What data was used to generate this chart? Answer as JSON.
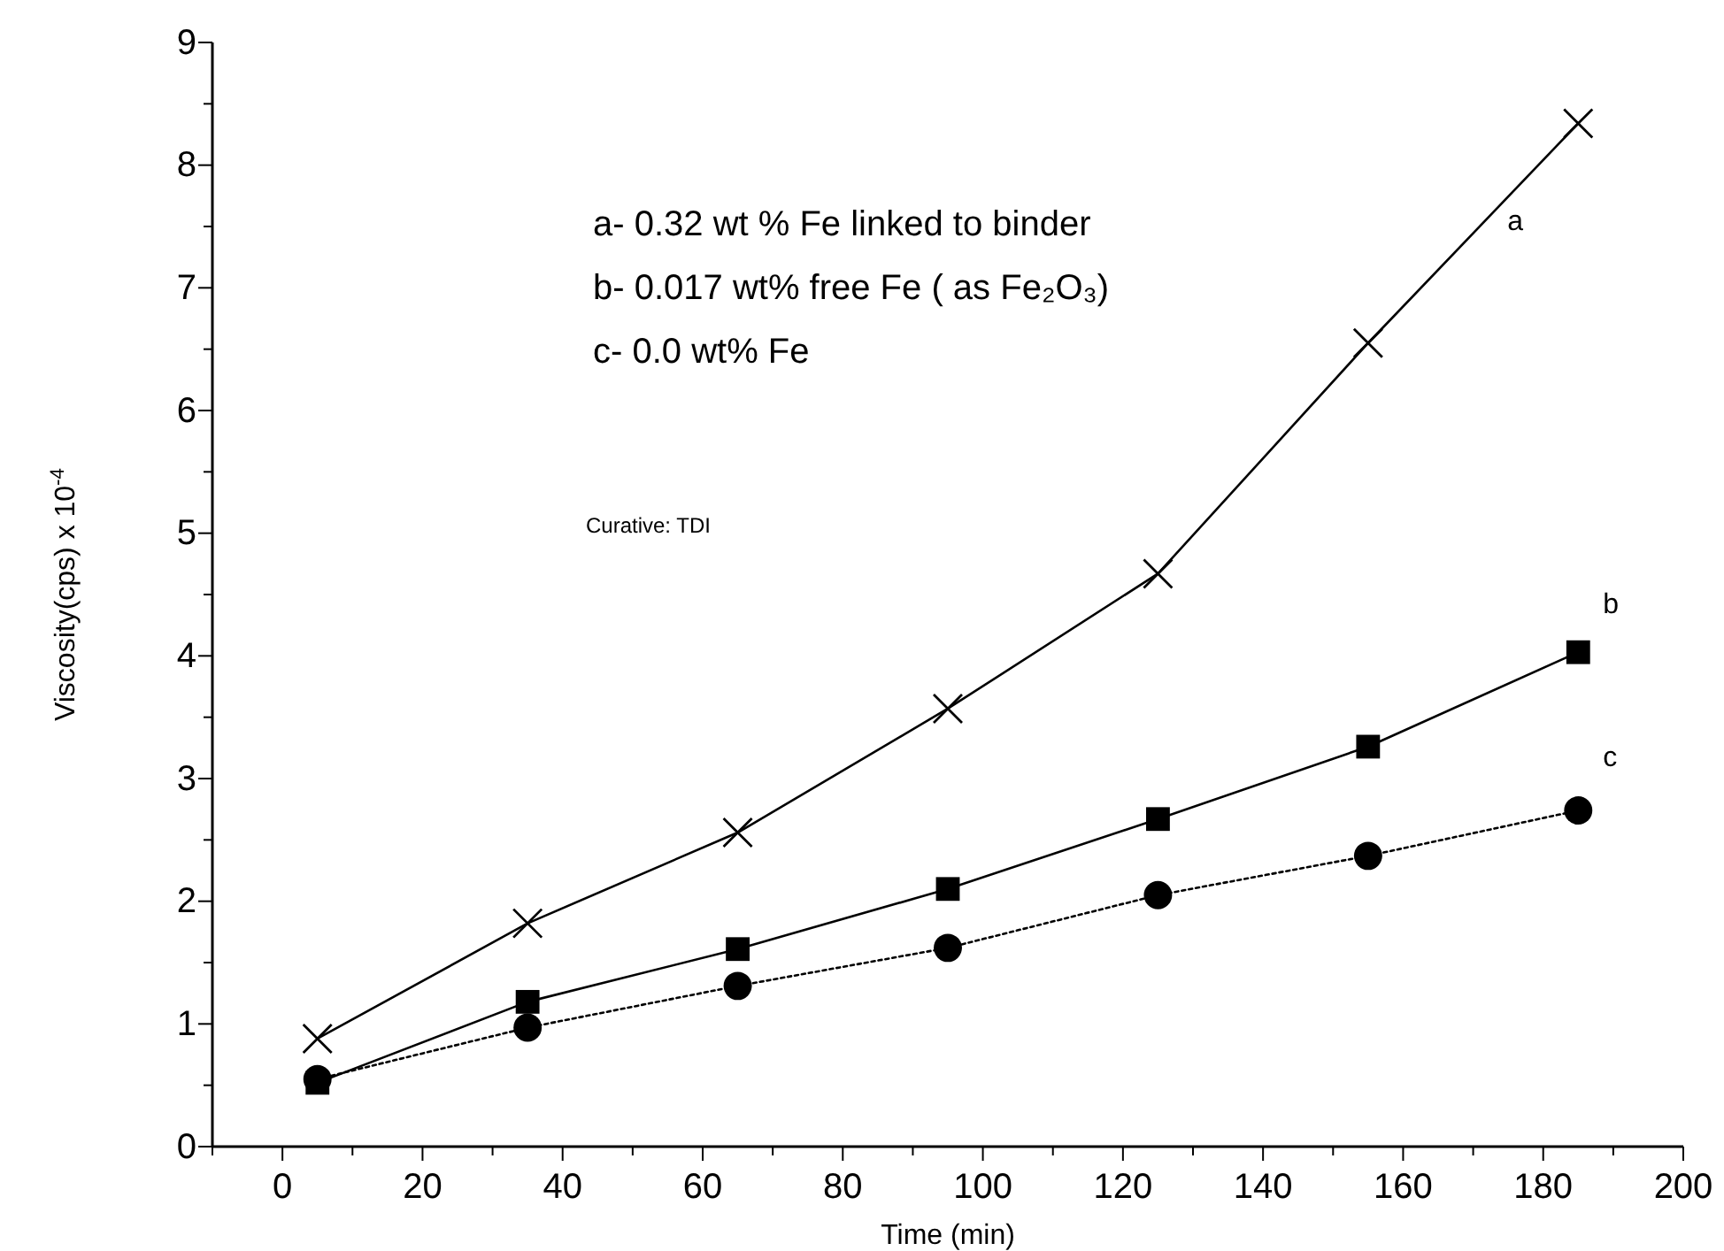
{
  "chart_data": {
    "type": "line",
    "xlabel": "Time (min)",
    "ylabel": "Viscosity(cps) x 10$^{-4}$",
    "x": [
      5,
      35,
      65,
      95,
      125,
      155,
      185
    ],
    "series": [
      {
        "name": "a",
        "color": "#000000",
        "marker": "cross",
        "line_style": "solid",
        "values": [
          0.88,
          1.82,
          2.56,
          3.57,
          4.67,
          6.55,
          8.34
        ]
      },
      {
        "name": "b",
        "color": "#000000",
        "marker": "square",
        "line_style": "solid",
        "values": [
          0.52,
          1.18,
          1.61,
          2.1,
          2.67,
          3.26,
          4.03
        ]
      },
      {
        "name": "c",
        "color": "#000000",
        "marker": "circle",
        "line_style": "dotted",
        "values": [
          0.55,
          0.97,
          1.31,
          1.62,
          2.05,
          2.37,
          2.74
        ]
      }
    ],
    "xlim": [
      -10,
      200
    ],
    "xticks": [
      {
        "value": -10,
        "label": null
      },
      0,
      {
        "value": 10,
        "label": null
      },
      20,
      {
        "value": 30,
        "label": null
      },
      40,
      {
        "value": 50,
        "label": null
      },
      60,
      {
        "value": 70,
        "label": null
      },
      80,
      {
        "value": 90,
        "label": null
      },
      100,
      {
        "value": 110,
        "label": null
      },
      120,
      {
        "value": 130,
        "label": null
      },
      140,
      {
        "value": 150,
        "label": null
      },
      160,
      {
        "value": 170,
        "label": null
      },
      180,
      {
        "value": 190,
        "label": null
      },
      200
    ],
    "ylim": [
      0,
      9
    ],
    "yticks": [
      0,
      {
        "value": 0.5,
        "label": null
      },
      1,
      {
        "value": 1.5,
        "label": null
      },
      2,
      {
        "value": 2.5,
        "label": null
      },
      3,
      {
        "value": 3.5,
        "label": null
      },
      4,
      {
        "value": 4.5,
        "label": null
      },
      5,
      {
        "value": 5.5,
        "label": null
      },
      6,
      {
        "value": 6.5,
        "label": null
      },
      7,
      {
        "value": 7.5,
        "label": null
      },
      8,
      {
        "value": 8.5,
        "label": null
      },
      9
    ],
    "annotations": [
      "a- 0.32 wt %  Fe linked to binder",
      "b- 0.017 wt% free Fe ( as Fe₂O₃)",
      "c- 0.0 wt% Fe",
      "Curative: TDI"
    ],
    "grid": false,
    "legend": false
  }
}
